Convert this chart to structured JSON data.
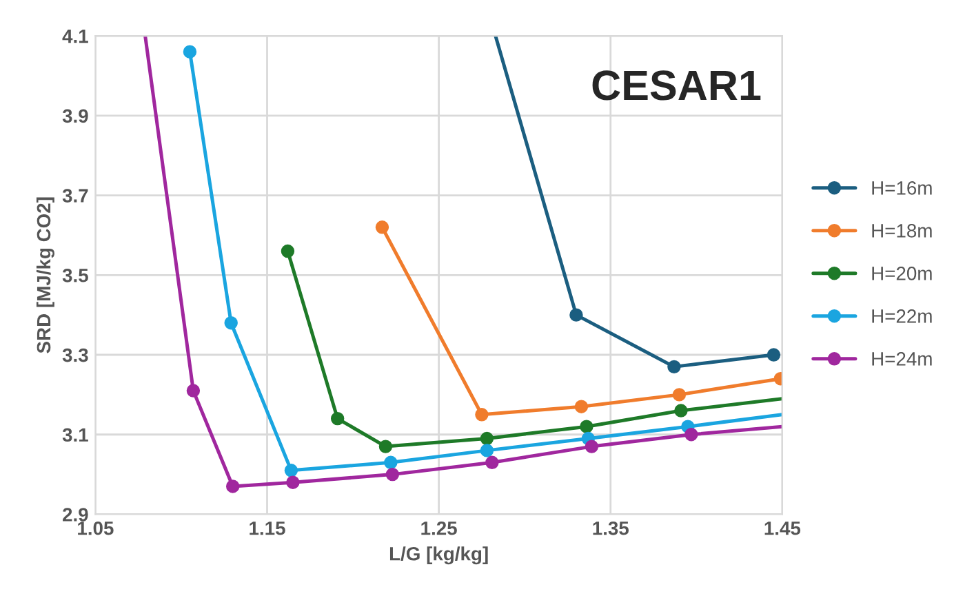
{
  "chart_data": {
    "type": "line",
    "xlabel": "L/G [kg/kg]",
    "ylabel": "SRD [MJ/kg CO2]",
    "annotations": [
      "CESAR1"
    ],
    "xlim": [
      1.05,
      1.45
    ],
    "xticks": [
      1.05,
      1.15,
      1.25,
      1.35,
      1.45
    ],
    "ylim": [
      2.9,
      4.1
    ],
    "yticks": [
      2.9,
      3.1,
      3.3,
      3.5,
      3.7,
      3.9,
      4.1
    ],
    "grid": true,
    "legend": "right",
    "marker": "circle",
    "line_style": "solid",
    "series": [
      {
        "name": "H=16m",
        "color": "#1b5e80",
        "x": [
          1.283,
          1.33,
          1.387,
          1.445
        ],
        "values": [
          4.1,
          3.4,
          3.27,
          3.3
        ]
      },
      {
        "name": "H=18m",
        "color": "#f07c2c",
        "x": [
          1.217,
          1.275,
          1.333,
          1.39,
          1.449
        ],
        "values": [
          3.62,
          3.15,
          3.17,
          3.2,
          3.24
        ]
      },
      {
        "name": "H=20m",
        "color": "#1e7a28",
        "x": [
          1.162,
          1.191,
          1.219,
          1.278,
          1.336,
          1.391,
          1.45
        ],
        "values": [
          3.56,
          3.14,
          3.07,
          3.09,
          3.12,
          3.16,
          3.19
        ]
      },
      {
        "name": "H=22m",
        "color": "#1aa5e0",
        "x": [
          1.105,
          1.129,
          1.164,
          1.222,
          1.278,
          1.337,
          1.395,
          1.45
        ],
        "values": [
          4.06,
          3.38,
          3.01,
          3.03,
          3.06,
          3.09,
          3.12,
          3.15
        ]
      },
      {
        "name": "H=24m",
        "color": "#a0279e",
        "x": [
          1.079,
          1.107,
          1.13,
          1.165,
          1.223,
          1.281,
          1.339,
          1.397,
          1.45
        ],
        "values": [
          4.1,
          3.21,
          2.97,
          2.98,
          3.0,
          3.03,
          3.07,
          3.1,
          3.12
        ]
      }
    ]
  }
}
